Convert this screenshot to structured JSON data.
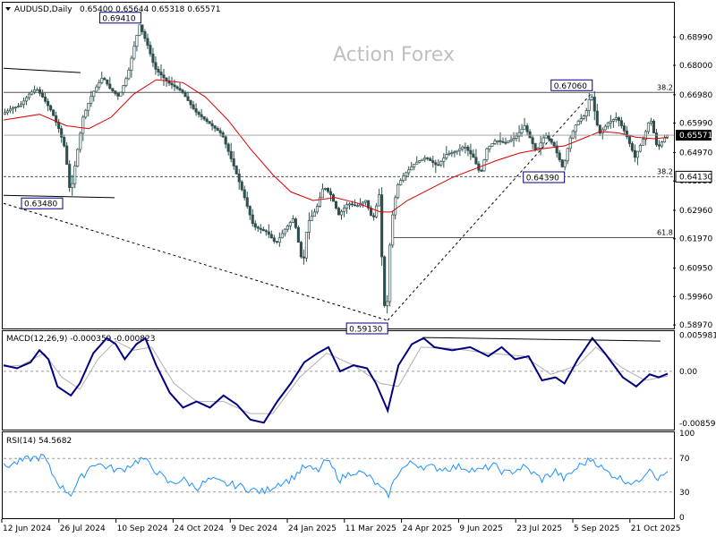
{
  "header": {
    "symbol": "AUDUSD,Daily",
    "ohlc": "0.65400 0.65644 0.65318 0.65571"
  },
  "watermark": "Action Forex",
  "colors": {
    "candle": "#2f4f4f",
    "ma": "#dd0000",
    "macd": "#000080",
    "signal": "#b0b0b0",
    "rsi": "#1e90ff",
    "grid": "#808080",
    "current_price_bg": "#000000"
  },
  "chart_data": {
    "type": "candlestick",
    "symbol": "AUDUSD",
    "timeframe": "Daily",
    "price_axis": {
      "ticks": [
        "0.68990",
        "0.68000",
        "0.66980",
        "0.65990",
        "0.64970",
        "0.63980",
        "0.62960",
        "0.61970",
        "0.60950",
        "0.59960",
        "0.58970"
      ],
      "ylim": [
        0.5888,
        0.7015
      ]
    },
    "x_axis_labels": [
      "12 Jun 2024",
      "26 Jul 2024",
      "10 Sep 2024",
      "24 Oct 2024",
      "9 Dec 2024",
      "24 Jan 2025",
      "11 Mar 2025",
      "24 Apr 2025",
      "9 Jun 2025",
      "23 Jul 2025",
      "5 Sep 2025",
      "21 Oct 2025"
    ],
    "price_path": [
      [
        0,
        0.663
      ],
      [
        10,
        0.665
      ],
      [
        20,
        0.666
      ],
      [
        30,
        0.67
      ],
      [
        38,
        0.672
      ],
      [
        45,
        0.669
      ],
      [
        55,
        0.664
      ],
      [
        63,
        0.658
      ],
      [
        70,
        0.651
      ],
      [
        76,
        0.6348
      ],
      [
        82,
        0.647
      ],
      [
        90,
        0.662
      ],
      [
        100,
        0.67
      ],
      [
        112,
        0.676
      ],
      [
        120,
        0.672
      ],
      [
        130,
        0.669
      ],
      [
        140,
        0.677
      ],
      [
        148,
        0.688
      ],
      [
        153,
        0.6941
      ],
      [
        162,
        0.687
      ],
      [
        170,
        0.679
      ],
      [
        185,
        0.674
      ],
      [
        200,
        0.671
      ],
      [
        215,
        0.664
      ],
      [
        230,
        0.66
      ],
      [
        245,
        0.656
      ],
      [
        258,
        0.645
      ],
      [
        270,
        0.634
      ],
      [
        280,
        0.624
      ],
      [
        295,
        0.622
      ],
      [
        305,
        0.618
      ],
      [
        315,
        0.623
      ],
      [
        325,
        0.627
      ],
      [
        335,
        0.61
      ],
      [
        340,
        0.625
      ],
      [
        350,
        0.63
      ],
      [
        358,
        0.638
      ],
      [
        366,
        0.635
      ],
      [
        375,
        0.628
      ],
      [
        385,
        0.632
      ],
      [
        395,
        0.631
      ],
      [
        405,
        0.633
      ],
      [
        413,
        0.626
      ],
      [
        420,
        0.635
      ],
      [
        425,
        0.599
      ],
      [
        428,
        0.5913
      ],
      [
        433,
        0.624
      ],
      [
        440,
        0.638
      ],
      [
        448,
        0.642
      ],
      [
        460,
        0.646
      ],
      [
        472,
        0.648
      ],
      [
        485,
        0.645
      ],
      [
        495,
        0.649
      ],
      [
        505,
        0.65
      ],
      [
        515,
        0.652
      ],
      [
        525,
        0.648
      ],
      [
        533,
        0.642
      ],
      [
        540,
        0.651
      ],
      [
        550,
        0.654
      ],
      [
        560,
        0.653
      ],
      [
        572,
        0.655
      ],
      [
        582,
        0.659
      ],
      [
        595,
        0.65
      ],
      [
        605,
        0.656
      ],
      [
        615,
        0.652
      ],
      [
        625,
        0.6439
      ],
      [
        632,
        0.654
      ],
      [
        640,
        0.66
      ],
      [
        650,
        0.663
      ],
      [
        656,
        0.6706
      ],
      [
        665,
        0.656
      ],
      [
        675,
        0.66
      ],
      [
        685,
        0.662
      ],
      [
        695,
        0.656
      ],
      [
        705,
        0.648
      ],
      [
        715,
        0.655
      ],
      [
        722,
        0.662
      ],
      [
        730,
        0.651
      ],
      [
        740,
        0.6557
      ]
    ],
    "ma_path": [
      [
        0,
        0.661
      ],
      [
        40,
        0.663
      ],
      [
        70,
        0.659
      ],
      [
        95,
        0.658
      ],
      [
        120,
        0.662
      ],
      [
        145,
        0.67
      ],
      [
        170,
        0.675
      ],
      [
        200,
        0.674
      ],
      [
        225,
        0.669
      ],
      [
        250,
        0.661
      ],
      [
        275,
        0.651
      ],
      [
        300,
        0.642
      ],
      [
        320,
        0.636
      ],
      [
        345,
        0.633
      ],
      [
        370,
        0.634
      ],
      [
        395,
        0.632
      ],
      [
        420,
        0.629
      ],
      [
        432,
        0.629
      ],
      [
        450,
        0.633
      ],
      [
        475,
        0.637
      ],
      [
        500,
        0.641
      ],
      [
        525,
        0.644
      ],
      [
        550,
        0.647
      ],
      [
        575,
        0.6495
      ],
      [
        600,
        0.651
      ],
      [
        625,
        0.652
      ],
      [
        645,
        0.6545
      ],
      [
        665,
        0.657
      ],
      [
        685,
        0.6565
      ],
      [
        705,
        0.655
      ],
      [
        725,
        0.6545
      ],
      [
        740,
        0.655
      ]
    ],
    "annotations": {
      "callouts": [
        {
          "text": "0.69410",
          "x": 153,
          "y": 0.6941
        },
        {
          "text": "0.63480",
          "x": 78,
          "y": 0.6348
        },
        {
          "text": "0.59130",
          "x": 428,
          "y": 0.5913
        },
        {
          "text": "0.67060",
          "x": 656,
          "y": 0.6706
        },
        {
          "text": "0.64390",
          "x": 625,
          "y": 0.6439
        }
      ],
      "fib_levels": [
        {
          "label": "38.2",
          "value": 0.6706
        },
        {
          "label": "38.2",
          "value": 0.6413
        },
        {
          "label": "61.8",
          "value": 0.6201
        }
      ],
      "current_price": "0.65571",
      "right_label": "0.64130"
    },
    "macd": {
      "title": "MACD(12,26,9) -0.000359 -0.000823",
      "ticks": [
        "0.005981",
        "0.00",
        "-0.00859"
      ],
      "ylim": [
        -0.0095,
        0.0065
      ],
      "macd_path": [
        [
          0,
          0.001
        ],
        [
          15,
          0.0005
        ],
        [
          30,
          0.0015
        ],
        [
          40,
          0.0035
        ],
        [
          50,
          0.002
        ],
        [
          60,
          -0.0025
        ],
        [
          75,
          -0.004
        ],
        [
          85,
          -0.002
        ],
        [
          100,
          0.003
        ],
        [
          115,
          0.0055
        ],
        [
          125,
          0.0045
        ],
        [
          135,
          0.002
        ],
        [
          148,
          0.0045
        ],
        [
          158,
          0.0055
        ],
        [
          170,
          0.001
        ],
        [
          185,
          -0.0035
        ],
        [
          200,
          -0.006
        ],
        [
          215,
          -0.005
        ],
        [
          230,
          -0.006
        ],
        [
          245,
          -0.004
        ],
        [
          260,
          -0.0055
        ],
        [
          275,
          -0.008
        ],
        [
          290,
          -0.0085
        ],
        [
          305,
          -0.005
        ],
        [
          320,
          -0.002
        ],
        [
          335,
          0.0015
        ],
        [
          350,
          0.003
        ],
        [
          362,
          0.004
        ],
        [
          375,
          0.0
        ],
        [
          390,
          0.001
        ],
        [
          405,
          0.0005
        ],
        [
          415,
          -0.002
        ],
        [
          428,
          -0.0065
        ],
        [
          440,
          0.001
        ],
        [
          455,
          0.0045
        ],
        [
          468,
          0.0055
        ],
        [
          480,
          0.004
        ],
        [
          500,
          0.0035
        ],
        [
          520,
          0.004
        ],
        [
          540,
          0.0025
        ],
        [
          555,
          0.004
        ],
        [
          570,
          0.002
        ],
        [
          585,
          0.0025
        ],
        [
          600,
          -0.0015
        ],
        [
          615,
          -0.001
        ],
        [
          625,
          -0.002
        ],
        [
          640,
          0.002
        ],
        [
          656,
          0.0055
        ],
        [
          670,
          0.003
        ],
        [
          690,
          -0.001
        ],
        [
          705,
          -0.0025
        ],
        [
          720,
          -0.0005
        ],
        [
          730,
          -0.001
        ],
        [
          740,
          -0.0004
        ]
      ],
      "signal_path": [
        [
          0,
          0.0008
        ],
        [
          20,
          0.001
        ],
        [
          45,
          0.003
        ],
        [
          65,
          -0.001
        ],
        [
          85,
          -0.003
        ],
        [
          105,
          0.002
        ],
        [
          125,
          0.005
        ],
        [
          145,
          0.0035
        ],
        [
          165,
          0.004
        ],
        [
          190,
          -0.002
        ],
        [
          215,
          -0.005
        ],
        [
          245,
          -0.005
        ],
        [
          275,
          -0.007
        ],
        [
          300,
          -0.007
        ],
        [
          330,
          -0.001
        ],
        [
          360,
          0.003
        ],
        [
          390,
          0.001
        ],
        [
          420,
          -0.002
        ],
        [
          440,
          -0.0025
        ],
        [
          465,
          0.004
        ],
        [
          500,
          0.0038
        ],
        [
          540,
          0.003
        ],
        [
          580,
          0.0025
        ],
        [
          610,
          -0.0005
        ],
        [
          640,
          0.001
        ],
        [
          660,
          0.004
        ],
        [
          690,
          0.0005
        ],
        [
          715,
          -0.0015
        ],
        [
          740,
          -0.0008
        ]
      ],
      "trendline": [
        [
          467,
          0.0056
        ],
        [
          732,
          0.005
        ]
      ]
    },
    "rsi": {
      "title": "RSI(14) 54.5682",
      "ticks": [
        "100",
        "70",
        "30",
        "0"
      ],
      "ylim": [
        0,
        100
      ],
      "rsi_path": [
        [
          0,
          60
        ],
        [
          15,
          65
        ],
        [
          30,
          70
        ],
        [
          45,
          72
        ],
        [
          55,
          50
        ],
        [
          65,
          35
        ],
        [
          75,
          28
        ],
        [
          85,
          45
        ],
        [
          100,
          65
        ],
        [
          115,
          60
        ],
        [
          130,
          55
        ],
        [
          145,
          65
        ],
        [
          155,
          70
        ],
        [
          170,
          55
        ],
        [
          185,
          40
        ],
        [
          200,
          45
        ],
        [
          215,
          35
        ],
        [
          230,
          45
        ],
        [
          245,
          40
        ],
        [
          260,
          38
        ],
        [
          275,
          33
        ],
        [
          290,
          30
        ],
        [
          305,
          40
        ],
        [
          320,
          45
        ],
        [
          335,
          60
        ],
        [
          350,
          55
        ],
        [
          360,
          68
        ],
        [
          375,
          45
        ],
        [
          390,
          55
        ],
        [
          405,
          50
        ],
        [
          415,
          40
        ],
        [
          428,
          25
        ],
        [
          440,
          55
        ],
        [
          455,
          65
        ],
        [
          470,
          60
        ],
        [
          490,
          58
        ],
        [
          510,
          60
        ],
        [
          530,
          55
        ],
        [
          545,
          62
        ],
        [
          560,
          52
        ],
        [
          580,
          60
        ],
        [
          600,
          45
        ],
        [
          615,
          55
        ],
        [
          625,
          45
        ],
        [
          640,
          60
        ],
        [
          656,
          70
        ],
        [
          670,
          55
        ],
        [
          690,
          45
        ],
        [
          705,
          40
        ],
        [
          720,
          60
        ],
        [
          730,
          45
        ],
        [
          740,
          54.57
        ]
      ]
    }
  }
}
